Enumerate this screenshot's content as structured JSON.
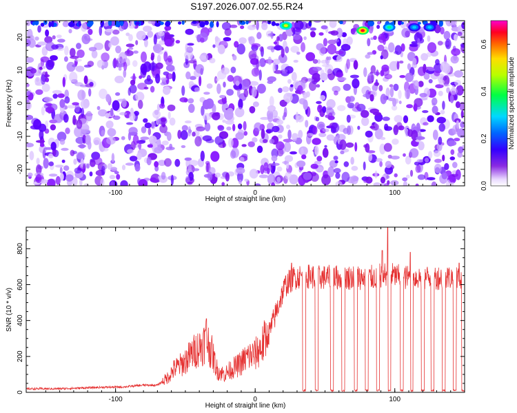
{
  "title": "S197.2026.007.02.55.R24",
  "colors": {
    "snr_line": "#e53030",
    "spectrogram_base": "#ffffff",
    "spectrogram_low": "#dcc4ff",
    "spectrogram_mid": "#8a1cff",
    "spectrogram_high": "#5a00ff"
  },
  "chart_data": [
    {
      "type": "heatmap",
      "title": "",
      "xlabel": "Height of straight line (km)",
      "ylabel": "Frequency (Hz)",
      "xlim": [
        -164,
        150
      ],
      "ylim": [
        -25,
        25
      ],
      "x_ticks": [
        -100,
        0,
        100
      ],
      "y_ticks": [
        -20,
        -10,
        0,
        10,
        20
      ],
      "colorbar": {
        "label": "Normalized spectral amplitude",
        "range": [
          0,
          0.7
        ],
        "ticks": [
          "0.0",
          "0.2",
          "0.4",
          "0.6"
        ],
        "colormap": "rainbow (violet-blue-cyan-green-yellow-red-magenta)"
      },
      "gap_columns_km": [
        -55,
        75
      ],
      "hotspots": [
        {
          "x": 22,
          "y": 23.5,
          "value": 0.55
        },
        {
          "x": 77,
          "y": 22,
          "value": 0.68
        },
        {
          "x": 96,
          "y": 23,
          "value": 0.3
        },
        {
          "x": 114,
          "y": 23,
          "value": 0.22
        },
        {
          "x": 125,
          "y": 23,
          "value": 0.2
        }
      ]
    },
    {
      "type": "line",
      "title": "",
      "xlabel": "Height of straight line (km)",
      "ylabel": "SNR (10 * v/v)",
      "xlim": [
        -164,
        150
      ],
      "ylim": [
        0,
        920
      ],
      "x_ticks": [
        -100,
        0,
        100
      ],
      "y_ticks": [
        0,
        200,
        400,
        600,
        800
      ],
      "series": [
        {
          "values_profile": [
            [
              -164,
              20
            ],
            [
              -140,
              20
            ],
            [
              -110,
              28
            ],
            [
              -95,
              30
            ],
            [
              -80,
              40
            ],
            [
              -70,
              40
            ],
            [
              -63,
              80
            ],
            [
              -58,
              130
            ],
            [
              -52,
              160
            ],
            [
              -47,
              200
            ],
            [
              -42,
              240
            ],
            [
              -38,
              260
            ],
            [
              -35,
              300
            ],
            [
              -31,
              220
            ],
            [
              -27,
              120
            ],
            [
              -22,
              100
            ],
            [
              -17,
              130
            ],
            [
              -12,
              150
            ],
            [
              -5,
              200
            ],
            [
              0,
              210
            ],
            [
              5,
              260
            ],
            [
              10,
              330
            ],
            [
              14,
              420
            ],
            [
              18,
              520
            ],
            [
              22,
              600
            ],
            [
              28,
              640
            ],
            [
              35,
              650
            ],
            [
              45,
              640
            ],
            [
              60,
              640
            ],
            [
              75,
              640
            ],
            [
              85,
              640
            ],
            [
              95,
              660
            ],
            [
              105,
              640
            ],
            [
              120,
              640
            ],
            [
              135,
              640
            ],
            [
              150,
              640
            ]
          ],
          "dropouts_km": [
            35,
            44,
            55,
            63,
            72,
            80,
            88,
            96,
            105,
            112,
            120,
            127,
            135,
            143,
            149
          ],
          "peaks": [
            {
              "x": -35,
              "y": 410
            },
            {
              "x": 95,
              "y": 920
            },
            {
              "x": 91,
              "y": 790
            },
            {
              "x": 111,
              "y": 780
            },
            {
              "x": 26,
              "y": 720
            },
            {
              "x": 146,
              "y": 720
            }
          ]
        }
      ]
    }
  ]
}
